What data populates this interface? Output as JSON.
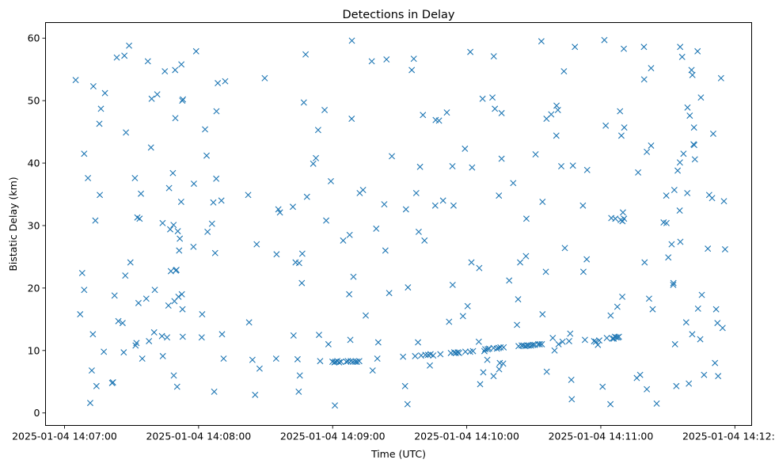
{
  "chart_data": {
    "type": "scatter",
    "title": "Detections in Delay",
    "xlabel": "Time (UTC)",
    "ylabel": "Bistatic Delay (km)",
    "x_units": "seconds after 2025-01-04 14:07:00",
    "xlim": [
      -8.5,
      307.5
    ],
    "ylim": [
      -2,
      62.5
    ],
    "x_ticks": [
      0,
      60,
      120,
      180,
      240,
      300
    ],
    "x_tick_labels": [
      "2025-01-04 14:07:00",
      "2025-01-04 14:08:00",
      "2025-01-04 14:09:00",
      "2025-01-04 14:10:00",
      "2025-01-04 14:11:00",
      "2025-01-04 14:12:00"
    ],
    "y_ticks": [
      0,
      10,
      20,
      30,
      40,
      50,
      60
    ],
    "y_tick_labels": [
      "0",
      "10",
      "20",
      "30",
      "40",
      "50",
      "60"
    ],
    "marker": "x",
    "color": "#1f77b4",
    "grid": false,
    "points": [
      [
        5,
        53.3
      ],
      [
        7,
        15.8
      ],
      [
        7.9,
        22.4
      ],
      [
        8.8,
        19.7
      ],
      [
        8.8,
        41.5
      ],
      [
        10.5,
        37.6
      ],
      [
        11.5,
        1.6
      ],
      [
        12.2,
        6.8
      ],
      [
        12.7,
        12.6
      ],
      [
        12.9,
        52.3
      ],
      [
        13.8,
        30.8
      ],
      [
        14.3,
        4.3
      ],
      [
        15.6,
        46.3
      ],
      [
        15.8,
        34.9
      ],
      [
        16.3,
        48.7
      ],
      [
        17.6,
        9.8
      ],
      [
        18.1,
        51.2
      ],
      [
        21.3,
        4.8
      ],
      [
        21.7,
        4.9
      ],
      [
        22.4,
        18.8
      ],
      [
        23.4,
        56.9
      ],
      [
        24.1,
        14.7
      ],
      [
        26,
        14.4
      ],
      [
        26.5,
        9.7
      ],
      [
        26.8,
        57.2
      ],
      [
        27.2,
        22
      ],
      [
        27.5,
        44.9
      ],
      [
        28.9,
        58.8
      ],
      [
        29.5,
        24.1
      ],
      [
        31.5,
        37.6
      ],
      [
        31.8,
        10.8
      ],
      [
        32.2,
        11.2
      ],
      [
        32.6,
        31.3
      ],
      [
        33.1,
        17.6
      ],
      [
        33.6,
        31.1
      ],
      [
        34.2,
        35.1
      ],
      [
        34.8,
        8.7
      ],
      [
        36.6,
        18.3
      ],
      [
        37.3,
        56.3
      ],
      [
        37.8,
        11.5
      ],
      [
        38.7,
        42.5
      ],
      [
        39,
        50.3
      ],
      [
        40.1,
        12.9
      ],
      [
        40.4,
        19.7
      ],
      [
        41.5,
        51
      ],
      [
        43.6,
        12.3
      ],
      [
        43.9,
        30.4
      ],
      [
        44,
        9.1
      ],
      [
        44.9,
        54.7
      ],
      [
        45.9,
        12.1
      ],
      [
        46.5,
        17.2
      ],
      [
        46.8,
        36
      ],
      [
        47.3,
        29.4
      ],
      [
        47.6,
        22.7
      ],
      [
        48.5,
        38.4
      ],
      [
        48.8,
        30.1
      ],
      [
        48.9,
        6
      ],
      [
        49.2,
        17.9
      ],
      [
        49.5,
        54.9
      ],
      [
        49.6,
        47.2
      ],
      [
        49.8,
        22.8
      ],
      [
        50.1,
        22.9
      ],
      [
        50.4,
        4.2
      ],
      [
        50.7,
        29.1
      ],
      [
        51,
        18.6
      ],
      [
        51.3,
        26
      ],
      [
        51.6,
        27.9
      ],
      [
        52.2,
        33.8
      ],
      [
        52.3,
        55.8
      ],
      [
        52.5,
        19
      ],
      [
        52.7,
        50
      ],
      [
        52.8,
        16.6
      ],
      [
        52.9,
        12.2
      ],
      [
        53,
        50.2
      ],
      [
        57.7,
        26.6
      ],
      [
        57.9,
        36.7
      ],
      [
        58.9,
        57.9
      ],
      [
        61.4,
        12.1
      ],
      [
        61.6,
        15.8
      ],
      [
        62.9,
        45.4
      ],
      [
        63.6,
        41.2
      ],
      [
        64,
        29
      ],
      [
        66,
        30.3
      ],
      [
        66.6,
        33.7
      ],
      [
        67,
        3.4
      ],
      [
        67.4,
        25.6
      ],
      [
        67.9,
        37.5
      ],
      [
        68,
        48.3
      ],
      [
        68.6,
        52.8
      ],
      [
        70.2,
        34
      ],
      [
        70.5,
        12.6
      ],
      [
        71.2,
        8.7
      ],
      [
        71.9,
        53.1
      ],
      [
        82.2,
        34.9
      ],
      [
        82.6,
        14.5
      ],
      [
        84.1,
        8.5
      ],
      [
        85.3,
        2.9
      ],
      [
        86,
        27
      ],
      [
        87.3,
        7.1
      ],
      [
        89.6,
        53.6
      ],
      [
        94.7,
        8.7
      ],
      [
        94.9,
        25.4
      ],
      [
        95.7,
        32.6
      ],
      [
        96.4,
        32.1
      ],
      [
        102.2,
        33
      ],
      [
        102.5,
        12.4
      ],
      [
        103.4,
        24.1
      ],
      [
        104.3,
        8.6
      ],
      [
        104.8,
        3.4
      ],
      [
        105,
        24
      ],
      [
        105.3,
        6
      ],
      [
        106.2,
        20.8
      ],
      [
        106.4,
        25.5
      ],
      [
        107.1,
        49.7
      ],
      [
        107.9,
        57.4
      ],
      [
        108.5,
        34.6
      ],
      [
        111.3,
        39.9
      ],
      [
        112.5,
        40.8
      ],
      [
        113.5,
        45.3
      ],
      [
        113.9,
        12.5
      ],
      [
        114.4,
        8.3
      ],
      [
        116.4,
        48.5
      ],
      [
        117.1,
        30.8
      ],
      [
        118.1,
        11
      ],
      [
        119.2,
        37.1
      ],
      [
        119.9,
        8.2
      ],
      [
        120.8,
        8.1
      ],
      [
        121,
        1.2
      ],
      [
        121.3,
        8.2
      ],
      [
        122.1,
        8.3
      ],
      [
        122.9,
        8.1
      ],
      [
        123.7,
        8.2
      ],
      [
        124.7,
        27.6
      ],
      [
        126.1,
        8.2
      ],
      [
        126.8,
        8.3
      ],
      [
        127.4,
        19
      ],
      [
        127.6,
        28.5
      ],
      [
        127.9,
        11.7
      ],
      [
        128.1,
        8.3
      ],
      [
        128.5,
        47.1
      ],
      [
        128.6,
        59.6
      ],
      [
        129.2,
        8.2
      ],
      [
        129.3,
        21.8
      ],
      [
        130.2,
        8.2
      ],
      [
        130.9,
        8.2
      ],
      [
        131.9,
        8.3
      ],
      [
        132.1,
        35.2
      ],
      [
        133.6,
        35.7
      ],
      [
        134.8,
        15.6
      ],
      [
        137.5,
        56.3
      ],
      [
        137.9,
        6.8
      ],
      [
        139.5,
        29.5
      ],
      [
        140,
        8.7
      ],
      [
        140.4,
        11.3
      ],
      [
        143.1,
        33.4
      ],
      [
        143.6,
        26
      ],
      [
        144.1,
        56.6
      ],
      [
        145.3,
        19.2
      ],
      [
        146.5,
        41.1
      ],
      [
        151.5,
        9
      ],
      [
        152.4,
        4.3
      ],
      [
        152.8,
        32.6
      ],
      [
        153.5,
        1.4
      ],
      [
        153.7,
        20.1
      ],
      [
        155.4,
        54.9
      ],
      [
        156.3,
        56.7
      ],
      [
        156.9,
        9.1
      ],
      [
        157.4,
        35.2
      ],
      [
        158.2,
        11.3
      ],
      [
        158.5,
        29
      ],
      [
        159.1,
        39.4
      ],
      [
        159.6,
        9.2
      ],
      [
        160.4,
        47.7
      ],
      [
        161.1,
        27.6
      ],
      [
        161.5,
        9.3
      ],
      [
        162.7,
        9.3
      ],
      [
        163.5,
        7.6
      ],
      [
        163.8,
        9.4
      ],
      [
        165,
        9.2
      ],
      [
        165.9,
        33.2
      ],
      [
        166.1,
        46.9
      ],
      [
        167.6,
        46.8
      ],
      [
        168.2,
        9.4
      ],
      [
        169.4,
        34
      ],
      [
        171.1,
        48.1
      ],
      [
        172.1,
        14.6
      ],
      [
        172.9,
        9.6
      ],
      [
        173.6,
        39.5
      ],
      [
        173.7,
        20.5
      ],
      [
        174.1,
        33.2
      ],
      [
        174.4,
        9.7
      ],
      [
        175.1,
        9.6
      ],
      [
        176,
        9.7
      ],
      [
        176.6,
        9.6
      ],
      [
        178.3,
        15.5
      ],
      [
        179.2,
        42.3
      ],
      [
        179.4,
        9.8
      ],
      [
        180.4,
        17.1
      ],
      [
        181.5,
        9.8
      ],
      [
        181.6,
        57.8
      ],
      [
        182.1,
        24.1
      ],
      [
        182.4,
        39.3
      ],
      [
        182.8,
        9.9
      ],
      [
        185.4,
        11.4
      ],
      [
        185.6,
        23.2
      ],
      [
        186,
        4.6
      ],
      [
        187.1,
        50.3
      ],
      [
        187.4,
        6.5
      ],
      [
        187.9,
        9.9
      ],
      [
        188.3,
        10.2
      ],
      [
        189.2,
        8.5
      ],
      [
        189.4,
        10.2
      ],
      [
        190,
        10.3
      ],
      [
        191.5,
        50.5
      ],
      [
        192,
        10.4
      ],
      [
        192,
        5.9
      ],
      [
        192.1,
        57.1
      ],
      [
        192.6,
        48.7
      ],
      [
        193.5,
        10.3
      ],
      [
        194.3,
        10.4
      ],
      [
        194.4,
        34.8
      ],
      [
        194.5,
        7
      ],
      [
        194.8,
        8
      ],
      [
        195.1,
        10.5
      ],
      [
        195.6,
        48
      ],
      [
        195.6,
        40.7
      ],
      [
        196.3,
        7.9
      ],
      [
        196.5,
        10.5
      ],
      [
        199,
        21.2
      ],
      [
        200.8,
        36.8
      ],
      [
        202.5,
        14.1
      ],
      [
        203,
        18.2
      ],
      [
        203.2,
        10.7
      ],
      [
        203.9,
        24.1
      ],
      [
        204.6,
        10.8
      ],
      [
        205.4,
        10.8
      ],
      [
        206.2,
        10.7
      ],
      [
        206.5,
        25.1
      ],
      [
        206.7,
        31.1
      ],
      [
        207.1,
        10.8
      ],
      [
        207.8,
        10.8
      ],
      [
        208.8,
        10.8
      ],
      [
        209.6,
        10.9
      ],
      [
        210.4,
        10.9
      ],
      [
        210.8,
        41.4
      ],
      [
        212,
        11
      ],
      [
        212.7,
        11
      ],
      [
        213.4,
        59.5
      ],
      [
        213.6,
        11
      ],
      [
        213.9,
        15.8
      ],
      [
        213.9,
        33.8
      ],
      [
        215.4,
        22.6
      ],
      [
        215.7,
        47.1
      ],
      [
        215.8,
        6.6
      ],
      [
        217.8,
        47.8
      ],
      [
        218.5,
        12
      ],
      [
        219.3,
        10
      ],
      [
        220.1,
        44.4
      ],
      [
        220.2,
        49.2
      ],
      [
        220.8,
        48.5
      ],
      [
        221.1,
        11
      ],
      [
        222.3,
        39.5
      ],
      [
        222.9,
        11.4
      ],
      [
        223.5,
        54.7
      ],
      [
        223.9,
        26.4
      ],
      [
        225.8,
        11.5
      ],
      [
        226.3,
        12.7
      ],
      [
        226.8,
        5.3
      ],
      [
        227,
        2.2
      ],
      [
        227.5,
        39.6
      ],
      [
        228.4,
        58.6
      ],
      [
        232,
        33.2
      ],
      [
        232.2,
        22.6
      ],
      [
        232.9,
        11.7
      ],
      [
        233.7,
        24.6
      ],
      [
        233.9,
        38.9
      ],
      [
        237,
        11.5
      ],
      [
        237.8,
        11.4
      ],
      [
        238.7,
        10.9
      ],
      [
        239.3,
        11.6
      ],
      [
        240.8,
        4.2
      ],
      [
        241.6,
        59.7
      ],
      [
        242.2,
        46
      ],
      [
        242.7,
        12
      ],
      [
        244.3,
        1.4
      ],
      [
        244.4,
        15.6
      ],
      [
        244.7,
        31.2
      ],
      [
        245.2,
        11.9
      ],
      [
        245.8,
        11.9
      ],
      [
        246.3,
        12.2
      ],
      [
        246.5,
        31.1
      ],
      [
        247,
        12.1
      ],
      [
        247.4,
        17
      ],
      [
        247.7,
        12.1
      ],
      [
        248.1,
        12.2
      ],
      [
        248.6,
        48.3
      ],
      [
        248.9,
        30.9
      ],
      [
        249.2,
        44.4
      ],
      [
        249.6,
        18.6
      ],
      [
        249.7,
        30.7
      ],
      [
        249.9,
        32.1
      ],
      [
        250.3,
        58.3
      ],
      [
        250.4,
        31.1
      ],
      [
        250.5,
        45.7
      ],
      [
        256.1,
        5.6
      ],
      [
        256.7,
        38.5
      ],
      [
        257.6,
        6.1
      ],
      [
        259.3,
        58.6
      ],
      [
        259.4,
        53.4
      ],
      [
        259.6,
        24.1
      ],
      [
        260.6,
        41.8
      ],
      [
        260.6,
        3.8
      ],
      [
        261.6,
        18.3
      ],
      [
        262.5,
        42.8
      ],
      [
        262.5,
        55.2
      ],
      [
        263.2,
        16.6
      ],
      [
        265,
        1.5
      ],
      [
        268.1,
        30.5
      ],
      [
        269.3,
        34.8
      ],
      [
        269.4,
        30.4
      ],
      [
        270.2,
        24.9
      ],
      [
        271.7,
        27
      ],
      [
        272.4,
        20.5
      ],
      [
        272.5,
        20.8
      ],
      [
        272.9,
        35.7
      ],
      [
        273.2,
        11
      ],
      [
        273.8,
        4.3
      ],
      [
        274.4,
        38.8
      ],
      [
        275.3,
        32.4
      ],
      [
        275.4,
        40.1
      ],
      [
        275.5,
        58.6
      ],
      [
        275.6,
        27.4
      ],
      [
        276.4,
        57
      ],
      [
        277,
        41.5
      ],
      [
        278.2,
        14.5
      ],
      [
        278.7,
        35.2
      ],
      [
        278.8,
        48.9
      ],
      [
        279.4,
        4.7
      ],
      [
        279.8,
        47.6
      ],
      [
        280.6,
        54.9
      ],
      [
        280.9,
        12.6
      ],
      [
        281,
        54.1
      ],
      [
        281.5,
        43
      ],
      [
        281.7,
        45.7
      ],
      [
        281.8,
        42.9
      ],
      [
        282.1,
        40.6
      ],
      [
        283.3,
        57.9
      ],
      [
        283.5,
        16.7
      ],
      [
        284.5,
        11.8
      ],
      [
        284.8,
        50.5
      ],
      [
        285.2,
        18.9
      ],
      [
        286.2,
        6.1
      ],
      [
        287.9,
        26.3
      ],
      [
        288.5,
        34.9
      ],
      [
        289.8,
        34.4
      ],
      [
        290.3,
        44.7
      ],
      [
        291.1,
        8
      ],
      [
        291.6,
        16.6
      ],
      [
        292.2,
        14.4
      ],
      [
        292.5,
        5.9
      ],
      [
        293.8,
        53.6
      ],
      [
        294.5,
        13.6
      ],
      [
        295.1,
        33.9
      ],
      [
        295.6,
        26.2
      ]
    ]
  }
}
